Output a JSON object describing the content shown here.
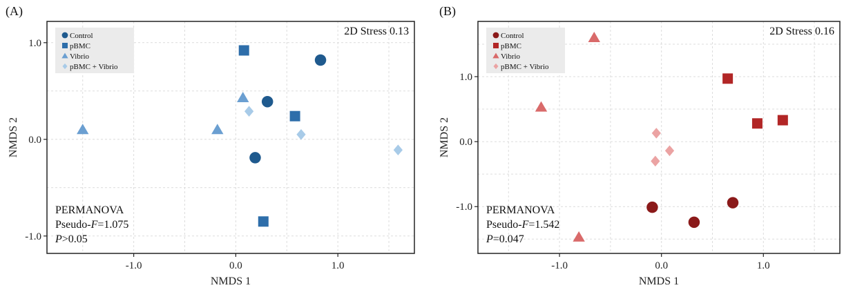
{
  "chart_data": [
    {
      "type": "scatter",
      "panel_label": "(A)",
      "stress": "2D Stress 0.13",
      "xlabel": "NMDS 1",
      "ylabel": "NMDS 2",
      "xlim": [
        -1.85,
        1.75
      ],
      "ylim": [
        -1.18,
        1.22
      ],
      "xticks": [
        -1.0,
        0.0,
        1.0
      ],
      "xtick_labels": [
        "-1.0",
        "0.0",
        "1.0"
      ],
      "yticks": [
        -1.0,
        0.0,
        1.0
      ],
      "ytick_labels": [
        "-1.0",
        "0.0",
        "1.0"
      ],
      "grid": true,
      "legend_position": "top-left",
      "permanova": {
        "title": "PERMANOVA",
        "pseudo_prefix": "Pseudo-",
        "pseudo_italic": "F",
        "pseudo_value": "=1.075",
        "p_italic": "P",
        "p_value": ">0.05"
      },
      "series": [
        {
          "name": "Control",
          "marker": "circle",
          "color": "#1f5a8e",
          "points": [
            [
              0.31,
              0.39
            ],
            [
              0.83,
              0.82
            ],
            [
              0.19,
              -0.19
            ]
          ]
        },
        {
          "name": "pBMC",
          "marker": "square",
          "color": "#2e6eaa",
          "points": [
            [
              0.08,
              0.92
            ],
            [
              0.58,
              0.24
            ],
            [
              0.27,
              -0.85
            ]
          ]
        },
        {
          "name": "Vibrio",
          "marker": "triangle",
          "color": "#6b9fd1",
          "points": [
            [
              -1.5,
              0.1
            ],
            [
              -0.18,
              0.1
            ],
            [
              0.07,
              0.43
            ]
          ]
        },
        {
          "name": "pBMC + Vibrio",
          "marker": "diamond",
          "color": "#a8cbe8",
          "points": [
            [
              0.13,
              0.29
            ],
            [
              0.64,
              0.05
            ],
            [
              1.59,
              -0.11
            ]
          ]
        }
      ]
    },
    {
      "type": "scatter",
      "panel_label": "(B)",
      "stress": "2D Stress 0.16",
      "xlabel": "NMDS 1",
      "ylabel": "NMDS 2",
      "xlim": [
        -1.8,
        1.75
      ],
      "ylim": [
        -1.72,
        1.85
      ],
      "xticks": [
        -1.0,
        0.0,
        1.0
      ],
      "xtick_labels": [
        "-1.0",
        "0.0",
        "1.0"
      ],
      "yticks": [
        -1.0,
        0.0,
        1.0
      ],
      "ytick_labels": [
        "-1.0",
        "0.0",
        "1.0"
      ],
      "grid": true,
      "legend_position": "top-left",
      "permanova": {
        "title": "PERMANOVA",
        "pseudo_prefix": "Pseudo-",
        "pseudo_italic": "F",
        "pseudo_value": "=1.542",
        "p_italic": "P",
        "p_value": "=0.047"
      },
      "series": [
        {
          "name": "Control",
          "marker": "circle",
          "color": "#8b1a1a",
          "points": [
            [
              -0.09,
              -1.01
            ],
            [
              0.32,
              -1.24
            ],
            [
              0.7,
              -0.94
            ]
          ]
        },
        {
          "name": "pBMC",
          "marker": "square",
          "color": "#b22626",
          "points": [
            [
              0.65,
              0.97
            ],
            [
              0.94,
              0.28
            ],
            [
              1.19,
              0.33
            ]
          ]
        },
        {
          "name": "Vibrio",
          "marker": "triangle",
          "color": "#d96a6a",
          "points": [
            [
              -0.66,
              1.6
            ],
            [
              -1.18,
              0.53
            ],
            [
              -0.81,
              -1.47
            ]
          ]
        },
        {
          "name": "pBMC + Vibrio",
          "marker": "diamond",
          "color": "#eba3a3",
          "points": [
            [
              -0.05,
              0.13
            ],
            [
              0.08,
              -0.14
            ],
            [
              -0.06,
              -0.3
            ]
          ]
        }
      ]
    }
  ]
}
